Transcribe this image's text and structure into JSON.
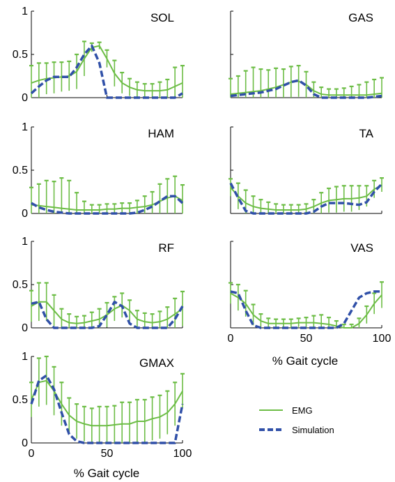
{
  "figure": {
    "xlabel": "% Gait cycle",
    "legend": {
      "placement": "bottom-right",
      "entries": [
        {
          "name": "EMG",
          "color": "#6cbd45",
          "style": "solid"
        },
        {
          "name": "Simulation",
          "color": "#3050a8",
          "style": "dashed"
        }
      ]
    }
  },
  "chart_data": [
    {
      "type": "line",
      "title": "SOL",
      "xlim": [
        0,
        100
      ],
      "ylim": [
        0,
        1
      ],
      "yticks": [
        "0",
        "0.5",
        "1"
      ],
      "xticks": [],
      "x": [
        0,
        5,
        10,
        15,
        20,
        25,
        30,
        35,
        40,
        45,
        50,
        55,
        60,
        65,
        70,
        75,
        80,
        85,
        90,
        95,
        100
      ],
      "emg": [
        0.17,
        0.2,
        0.22,
        0.23,
        0.24,
        0.25,
        0.3,
        0.45,
        0.58,
        0.6,
        0.45,
        0.28,
        0.17,
        0.12,
        0.09,
        0.08,
        0.08,
        0.08,
        0.09,
        0.13,
        0.17
      ],
      "emg_err": [
        0.2,
        0.2,
        0.18,
        0.18,
        0.17,
        0.17,
        0.2,
        0.2,
        0.05,
        0.04,
        0.1,
        0.15,
        0.12,
        0.1,
        0.09,
        0.08,
        0.08,
        0.1,
        0.12,
        0.22,
        0.2
      ],
      "sim": [
        0.05,
        0.13,
        0.2,
        0.24,
        0.24,
        0.24,
        0.35,
        0.5,
        0.6,
        0.4,
        0.0,
        0.0,
        0.0,
        0.0,
        0.0,
        0.0,
        0.0,
        0.0,
        0.0,
        0.0,
        0.05
      ]
    },
    {
      "type": "line",
      "title": "GAS",
      "xlim": [
        0,
        100
      ],
      "ylim": [
        0,
        1
      ],
      "yticks": [],
      "xticks": [],
      "x": [
        0,
        5,
        10,
        15,
        20,
        25,
        30,
        35,
        40,
        45,
        50,
        55,
        60,
        65,
        70,
        75,
        80,
        85,
        90,
        95,
        100
      ],
      "emg": [
        0.04,
        0.05,
        0.06,
        0.07,
        0.08,
        0.1,
        0.12,
        0.15,
        0.18,
        0.19,
        0.15,
        0.08,
        0.04,
        0.03,
        0.03,
        0.03,
        0.03,
        0.03,
        0.03,
        0.04,
        0.05
      ],
      "emg_err": [
        0.18,
        0.2,
        0.25,
        0.28,
        0.25,
        0.22,
        0.22,
        0.18,
        0.18,
        0.18,
        0.15,
        0.1,
        0.08,
        0.07,
        0.07,
        0.08,
        0.1,
        0.12,
        0.15,
        0.17,
        0.18
      ],
      "sim": [
        0.02,
        0.03,
        0.04,
        0.05,
        0.06,
        0.08,
        0.1,
        0.14,
        0.18,
        0.2,
        0.14,
        0.04,
        0.0,
        0.0,
        0.0,
        0.0,
        0.0,
        0.0,
        0.0,
        0.01,
        0.02
      ]
    },
    {
      "type": "line",
      "title": "HAM",
      "xlim": [
        0,
        100
      ],
      "ylim": [
        0,
        1
      ],
      "yticks": [
        "0",
        "0.5",
        "1"
      ],
      "xticks": [],
      "x": [
        0,
        5,
        10,
        15,
        20,
        25,
        30,
        35,
        40,
        45,
        50,
        55,
        60,
        65,
        70,
        75,
        80,
        85,
        90,
        95,
        100
      ],
      "emg": [
        0.1,
        0.09,
        0.08,
        0.07,
        0.06,
        0.05,
        0.04,
        0.04,
        0.04,
        0.04,
        0.05,
        0.05,
        0.06,
        0.06,
        0.07,
        0.08,
        0.1,
        0.14,
        0.18,
        0.2,
        0.15
      ],
      "emg_err": [
        0.2,
        0.25,
        0.3,
        0.3,
        0.35,
        0.33,
        0.2,
        0.1,
        0.06,
        0.06,
        0.06,
        0.06,
        0.06,
        0.06,
        0.08,
        0.12,
        0.15,
        0.2,
        0.22,
        0.23,
        0.18
      ],
      "sim": [
        0.12,
        0.07,
        0.04,
        0.02,
        0.01,
        0.0,
        0.0,
        0.0,
        0.0,
        0.0,
        0.0,
        0.0,
        0.0,
        0.0,
        0.01,
        0.04,
        0.08,
        0.14,
        0.2,
        0.2,
        0.12
      ]
    },
    {
      "type": "line",
      "title": "TA",
      "xlim": [
        0,
        100
      ],
      "ylim": [
        0,
        1
      ],
      "yticks": [],
      "xticks": [],
      "x": [
        0,
        5,
        10,
        15,
        20,
        25,
        30,
        35,
        40,
        45,
        50,
        55,
        60,
        65,
        70,
        75,
        80,
        85,
        90,
        95,
        100
      ],
      "emg": [
        0.3,
        0.2,
        0.12,
        0.08,
        0.06,
        0.05,
        0.04,
        0.04,
        0.04,
        0.04,
        0.05,
        0.08,
        0.12,
        0.15,
        0.16,
        0.17,
        0.17,
        0.18,
        0.2,
        0.28,
        0.33
      ],
      "emg_err": [
        0.1,
        0.15,
        0.15,
        0.12,
        0.1,
        0.08,
        0.07,
        0.06,
        0.06,
        0.06,
        0.06,
        0.08,
        0.12,
        0.14,
        0.15,
        0.15,
        0.15,
        0.14,
        0.12,
        0.1,
        0.08
      ],
      "sim": [
        0.35,
        0.18,
        0.03,
        0.0,
        0.0,
        0.0,
        0.0,
        0.0,
        0.0,
        0.0,
        0.0,
        0.02,
        0.08,
        0.12,
        0.12,
        0.12,
        0.11,
        0.1,
        0.13,
        0.25,
        0.34
      ]
    },
    {
      "type": "line",
      "title": "RF",
      "xlim": [
        0,
        100
      ],
      "ylim": [
        0,
        1
      ],
      "yticks": [
        "0",
        "0.5",
        "1"
      ],
      "xticks": [],
      "x": [
        0,
        5,
        10,
        15,
        20,
        25,
        30,
        35,
        40,
        45,
        50,
        55,
        60,
        65,
        70,
        75,
        80,
        85,
        90,
        95,
        100
      ],
      "emg": [
        0.25,
        0.3,
        0.3,
        0.2,
        0.1,
        0.06,
        0.05,
        0.06,
        0.08,
        0.1,
        0.15,
        0.22,
        0.26,
        0.2,
        0.1,
        0.07,
        0.06,
        0.07,
        0.1,
        0.16,
        0.22
      ],
      "emg_err": [
        0.18,
        0.22,
        0.22,
        0.18,
        0.12,
        0.1,
        0.08,
        0.08,
        0.1,
        0.12,
        0.14,
        0.14,
        0.14,
        0.12,
        0.1,
        0.1,
        0.1,
        0.12,
        0.14,
        0.18,
        0.2
      ],
      "sim": [
        0.28,
        0.3,
        0.1,
        0.0,
        0.0,
        0.0,
        0.0,
        0.0,
        0.0,
        0.02,
        0.15,
        0.3,
        0.25,
        0.05,
        0.0,
        0.0,
        0.0,
        0.0,
        0.0,
        0.1,
        0.25
      ]
    },
    {
      "type": "line",
      "title": "VAS",
      "xlim": [
        0,
        100
      ],
      "ylim": [
        0,
        1
      ],
      "yticks": [],
      "xticks": [
        "0",
        "50",
        "100"
      ],
      "x": [
        0,
        5,
        10,
        15,
        20,
        25,
        30,
        35,
        40,
        45,
        50,
        55,
        60,
        65,
        70,
        75,
        80,
        85,
        90,
        95,
        100
      ],
      "emg": [
        0.4,
        0.35,
        0.28,
        0.15,
        0.08,
        0.05,
        0.05,
        0.05,
        0.05,
        0.06,
        0.06,
        0.06,
        0.05,
        0.04,
        0.02,
        0.0,
        0.0,
        0.05,
        0.15,
        0.28,
        0.38
      ],
      "emg_err": [
        0.12,
        0.15,
        0.15,
        0.12,
        0.08,
        0.06,
        0.05,
        0.05,
        0.05,
        0.05,
        0.06,
        0.08,
        0.1,
        0.08,
        0.06,
        0.04,
        0.04,
        0.06,
        0.1,
        0.12,
        0.15
      ],
      "sim": [
        0.42,
        0.4,
        0.2,
        0.03,
        0.0,
        0.0,
        0.0,
        0.0,
        0.0,
        0.0,
        0.0,
        0.0,
        0.0,
        0.0,
        0.0,
        0.05,
        0.2,
        0.35,
        0.4,
        0.42,
        0.42
      ]
    },
    {
      "type": "line",
      "title": "GMAX",
      "xlim": [
        0,
        100
      ],
      "ylim": [
        0,
        1
      ],
      "yticks": [
        "0",
        "0.5",
        "1"
      ],
      "xticks": [
        "0",
        "50",
        "100"
      ],
      "x": [
        0,
        5,
        10,
        15,
        20,
        25,
        30,
        35,
        40,
        45,
        50,
        55,
        60,
        65,
        70,
        75,
        80,
        85,
        90,
        95,
        100
      ],
      "emg": [
        0.5,
        0.7,
        0.72,
        0.6,
        0.45,
        0.32,
        0.25,
        0.22,
        0.2,
        0.2,
        0.2,
        0.21,
        0.22,
        0.22,
        0.25,
        0.25,
        0.28,
        0.3,
        0.35,
        0.45,
        0.6
      ],
      "emg_err": [
        0.2,
        0.28,
        0.28,
        0.28,
        0.25,
        0.2,
        0.2,
        0.2,
        0.2,
        0.22,
        0.22,
        0.22,
        0.25,
        0.25,
        0.25,
        0.25,
        0.25,
        0.25,
        0.25,
        0.25,
        0.2
      ],
      "sim": [
        0.45,
        0.72,
        0.78,
        0.62,
        0.35,
        0.1,
        0.02,
        0.0,
        0.0,
        0.0,
        0.0,
        0.0,
        0.0,
        0.0,
        0.0,
        0.0,
        0.0,
        0.0,
        0.0,
        0.0,
        0.45
      ]
    }
  ]
}
